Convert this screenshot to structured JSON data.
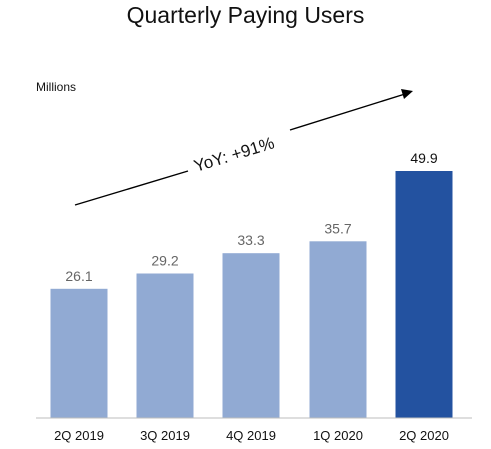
{
  "chart_data": {
    "type": "bar",
    "title": "Quarterly Paying Users",
    "unit_label": "Millions",
    "categories": [
      "2Q 2019",
      "3Q 2019",
      "4Q 2019",
      "1Q 2020",
      "2Q 2020"
    ],
    "values": [
      26.1,
      29.2,
      33.3,
      35.7,
      49.9
    ],
    "data_labels": [
      "26.1",
      "29.2",
      "33.3",
      "35.7",
      "49.9"
    ],
    "annotation": "YoY: +91%",
    "ylim": [
      0,
      55
    ],
    "grid": false,
    "legend": "none",
    "colors": {
      "bar": "#91aad3",
      "highlight_bar": "#2352a0",
      "label": "#666666",
      "highlight_label": "#111111",
      "axis": "#bdbdbd",
      "arrow": "#000000"
    },
    "highlight_index": 4
  }
}
